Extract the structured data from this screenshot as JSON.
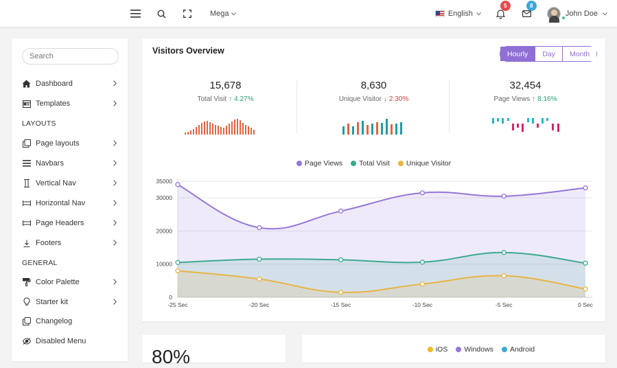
{
  "navbar": {
    "mega_label": "Mega",
    "language": "English",
    "notifications_count": "5",
    "messages_count": "8",
    "user_name": "John Doe"
  },
  "sidebar": {
    "search_placeholder": "Search",
    "items": [
      {
        "label": "Dashboard",
        "icon": "home-icon"
      },
      {
        "label": "Templates",
        "icon": "template-icon"
      }
    ],
    "heading_layouts": "LAYOUTS",
    "layout_items": [
      {
        "label": "Page layouts",
        "icon": "copy-icon"
      },
      {
        "label": "Navbars",
        "icon": "menu-icon"
      },
      {
        "label": "Vertical Nav",
        "icon": "vertical-nav-icon"
      },
      {
        "label": "Horizontal Nav",
        "icon": "horizontal-nav-icon"
      },
      {
        "label": "Page Headers",
        "icon": "header-icon"
      },
      {
        "label": "Footers",
        "icon": "footer-icon"
      }
    ],
    "heading_general": "GENERAL",
    "general_items": [
      {
        "label": "Color Palette",
        "icon": "paint-roller-icon"
      },
      {
        "label": "Starter kit",
        "icon": "bulb-icon"
      },
      {
        "label": "Changelog",
        "icon": "copy-icon"
      },
      {
        "label": "Disabled Menu",
        "icon": "eye-off-icon"
      }
    ]
  },
  "visitors": {
    "title": "Visitors Overview",
    "tabs": [
      "Hourly",
      "Day",
      "Month"
    ],
    "active_tab": "Hourly",
    "stats": [
      {
        "value": "15,678",
        "label": "Total Visit",
        "change": "4.27%",
        "direction": "up"
      },
      {
        "value": "8,630",
        "label": "Unique Visitor",
        "change": "2.30%",
        "direction": "down"
      },
      {
        "value": "32,454",
        "label": "Page Views",
        "change": "8.16%",
        "direction": "up"
      }
    ]
  },
  "chart_data": {
    "type": "line",
    "x": [
      "-25 Sec",
      "-20 Sec",
      "-15 Sec",
      "-10 Sec",
      "-5 Sec",
      "0 Sec"
    ],
    "series": [
      {
        "name": "Page Views",
        "color": "#9575d8",
        "values": [
          34000,
          21000,
          26000,
          31500,
          30500,
          33000
        ]
      },
      {
        "name": "Total Visit",
        "color": "#3aaa8e",
        "values": [
          10500,
          11500,
          11300,
          10600,
          13500,
          10300
        ]
      },
      {
        "name": "Unique Visitor",
        "color": "#e8b443",
        "values": [
          8000,
          5500,
          1500,
          4000,
          6500,
          2500
        ]
      }
    ],
    "y_ticks": [
      "0",
      "10000",
      "20000",
      "30000",
      "35000"
    ],
    "ylim": [
      0,
      35000
    ],
    "legend_position": "top"
  },
  "bottom": {
    "percent_partial": "80%",
    "legend": [
      {
        "name": "iOS",
        "color": "#f0b929"
      },
      {
        "name": "Windows",
        "color": "#9575d8"
      },
      {
        "name": "Android",
        "color": "#3aa8d8"
      }
    ]
  }
}
